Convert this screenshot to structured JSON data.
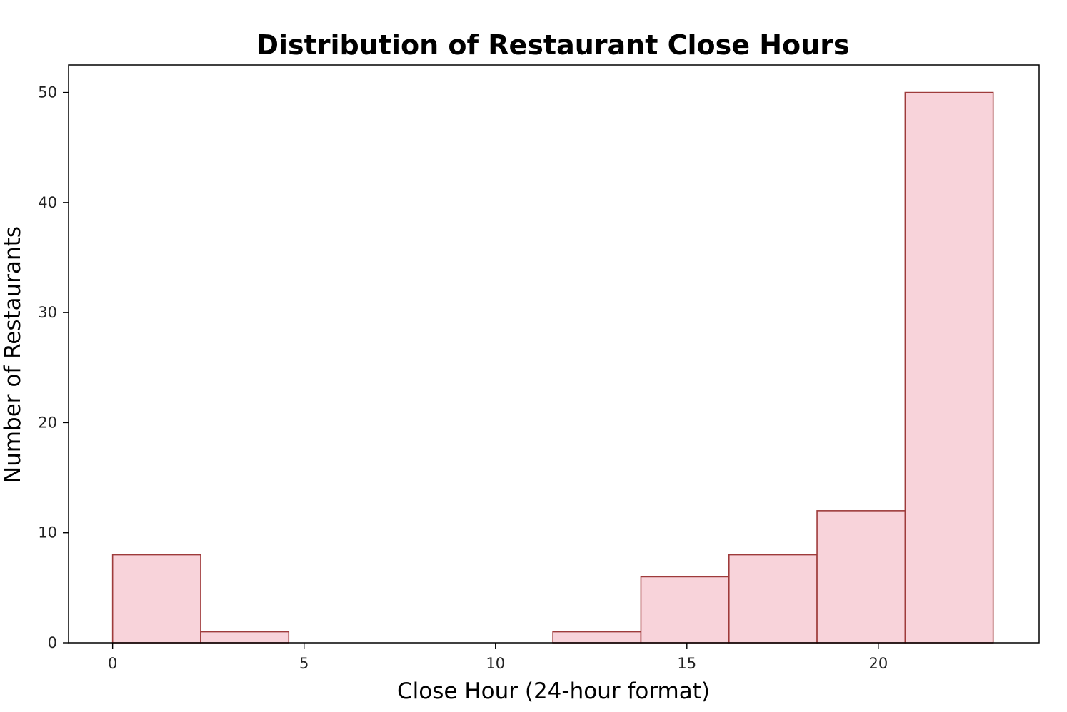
{
  "chart_data": {
    "type": "bar",
    "title": "Distribution of Restaurant Close Hours",
    "xlabel": "Close Hour (24-hour format)",
    "ylabel": "Number of Restaurants",
    "xlim": [
      -1.15,
      24.2
    ],
    "ylim": [
      0,
      52.5
    ],
    "xticks": [
      0,
      5,
      10,
      15,
      20
    ],
    "yticks": [
      0,
      10,
      20,
      30,
      40,
      50
    ],
    "bins": [
      {
        "start": 0.0,
        "end": 2.3,
        "count": 8
      },
      {
        "start": 2.3,
        "end": 4.6,
        "count": 1
      },
      {
        "start": 4.6,
        "end": 6.9,
        "count": 0
      },
      {
        "start": 6.9,
        "end": 9.2,
        "count": 0
      },
      {
        "start": 9.2,
        "end": 11.5,
        "count": 0
      },
      {
        "start": 11.5,
        "end": 13.8,
        "count": 1
      },
      {
        "start": 13.8,
        "end": 16.1,
        "count": 6
      },
      {
        "start": 16.1,
        "end": 18.4,
        "count": 8
      },
      {
        "start": 18.4,
        "end": 20.7,
        "count": 12
      },
      {
        "start": 20.7,
        "end": 23.0,
        "count": 50
      }
    ],
    "bar_color": "#f8d3da",
    "edge_color": "#9e3b3b",
    "grid": false,
    "legend": "none"
  }
}
